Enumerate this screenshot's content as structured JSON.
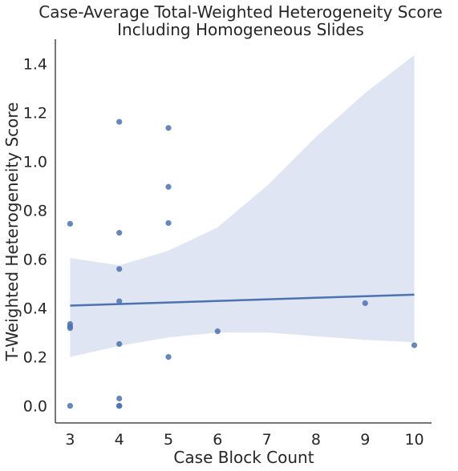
{
  "chart_data": {
    "type": "scatter",
    "title": "Case-Average Total-Weighted Heterogeneity Score",
    "subtitle": "Including Homogeneous Slides",
    "xlabel": "Case Block Count",
    "ylabel": "T-Weighted Heterogeneity Score",
    "xlim": [
      2.7,
      10.35
    ],
    "ylim": [
      -0.07,
      1.5
    ],
    "xticks": [
      3,
      4,
      5,
      6,
      7,
      8,
      9,
      10
    ],
    "yticks": [
      0.0,
      0.2,
      0.4,
      0.6,
      0.8,
      1.0,
      1.2,
      1.4
    ],
    "ytick_labels": [
      "0.0",
      "0.2",
      "0.4",
      "0.6",
      "0.8",
      "1.0",
      "1.2",
      "1.4"
    ],
    "grid": false,
    "points": [
      {
        "x": 3,
        "y": 0.745
      },
      {
        "x": 3,
        "y": 0.335
      },
      {
        "x": 3,
        "y": 0.325
      },
      {
        "x": 3,
        "y": 0.318
      },
      {
        "x": 3,
        "y": 0.0
      },
      {
        "x": 4,
        "y": 1.162
      },
      {
        "x": 4,
        "y": 0.708
      },
      {
        "x": 4,
        "y": 0.56
      },
      {
        "x": 4,
        "y": 0.428
      },
      {
        "x": 4,
        "y": 0.253
      },
      {
        "x": 4,
        "y": 0.03
      },
      {
        "x": 4,
        "y": 0.0
      },
      {
        "x": 4,
        "y": 0.0
      },
      {
        "x": 5,
        "y": 1.137
      },
      {
        "x": 5,
        "y": 0.896
      },
      {
        "x": 5,
        "y": 0.748
      },
      {
        "x": 5,
        "y": 0.2
      },
      {
        "x": 6,
        "y": 0.305
      },
      {
        "x": 9,
        "y": 0.42
      },
      {
        "x": 10,
        "y": 0.248
      }
    ],
    "regression_line": {
      "x": [
        3,
        10
      ],
      "y": [
        0.41,
        0.455
      ]
    },
    "confidence_band": {
      "x": [
        3,
        4,
        5,
        6,
        7,
        8,
        9,
        10
      ],
      "upper": [
        0.605,
        0.575,
        0.635,
        0.73,
        0.9,
        1.1,
        1.28,
        1.435
      ],
      "lower": [
        0.2,
        0.245,
        0.28,
        0.3,
        0.3,
        0.285,
        0.27,
        0.26
      ]
    },
    "colors": {
      "points": "#4c72b0",
      "line": "#4c72b0",
      "band": "#dfe5f2",
      "axes": "#262626"
    }
  }
}
